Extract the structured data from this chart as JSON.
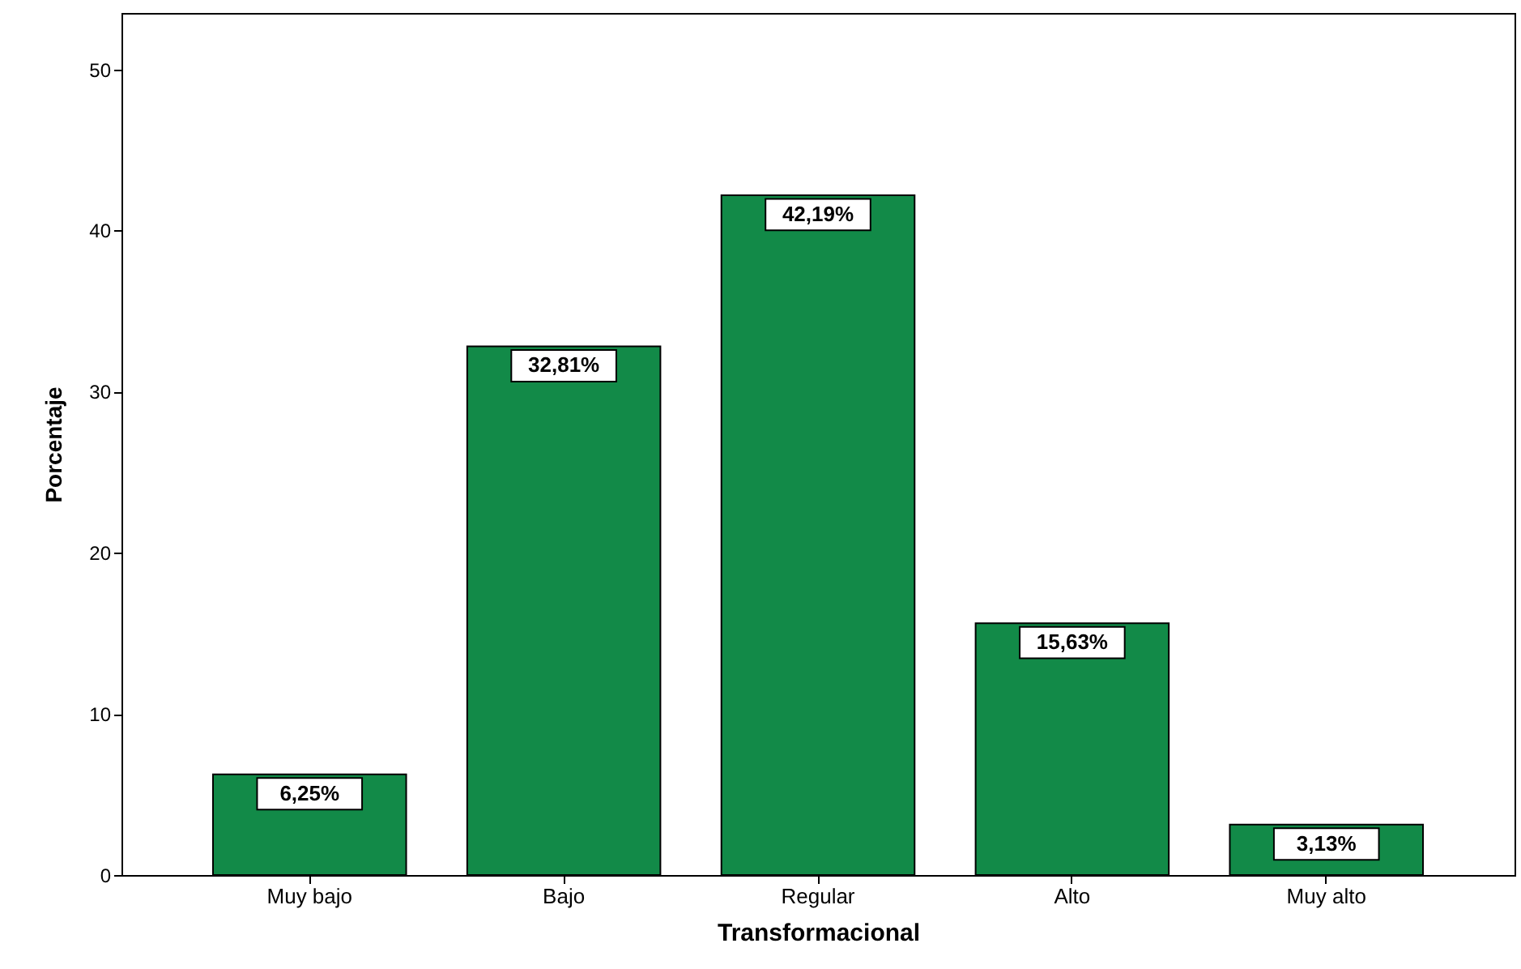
{
  "chart_data": {
    "type": "bar",
    "xlabel": "Transformacional",
    "ylabel": "Porcentaje",
    "categories": [
      "Muy bajo",
      "Bajo",
      "Regular",
      "Alto",
      "Muy alto"
    ],
    "values": [
      6.25,
      32.81,
      42.19,
      15.63,
      3.13
    ],
    "value_labels": [
      "6,25%",
      "32,81%",
      "42,19%",
      "15,63%",
      "3,13%"
    ],
    "color": "#128a48",
    "ylim": [
      0,
      53.5
    ],
    "yticks": [
      0,
      10,
      20,
      30,
      40,
      50
    ],
    "grid": false
  }
}
